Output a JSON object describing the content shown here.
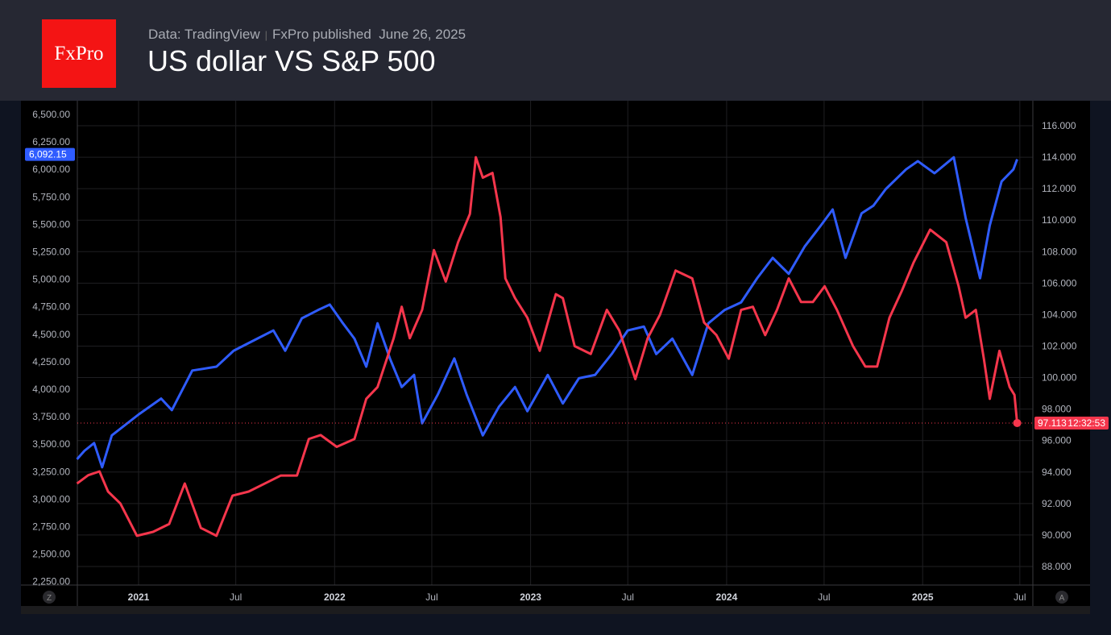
{
  "header": {
    "logo_text": "FxPro",
    "source": "Data: TradingView",
    "publisher": "FxPro published",
    "date": "June 26, 2025",
    "title": "US dollar VS S&P 500"
  },
  "axis_buttons": {
    "left": "Z",
    "right": "A"
  },
  "chart_data": {
    "type": "line",
    "title": "US dollar VS S&P 500",
    "grid": true,
    "colors": {
      "sp500": "#2f5cff",
      "dxy": "#f5364c"
    },
    "x_ticks": [
      {
        "date": "2021-01-01",
        "label": "2021",
        "bold": true
      },
      {
        "date": "2021-07-01",
        "label": "Jul"
      },
      {
        "date": "2022-01-01",
        "label": "2022",
        "bold": true
      },
      {
        "date": "2022-07-01",
        "label": "Jul"
      },
      {
        "date": "2023-01-01",
        "label": "2023",
        "bold": true
      },
      {
        "date": "2023-07-01",
        "label": "Jul"
      },
      {
        "date": "2024-01-01",
        "label": "2024",
        "bold": true
      },
      {
        "date": "2024-07-01",
        "label": "Jul"
      },
      {
        "date": "2025-01-01",
        "label": "2025",
        "bold": true
      },
      {
        "date": "2025-07-01",
        "label": "Jul"
      }
    ],
    "left_axis": {
      "ylim": [
        2250,
        6500
      ],
      "ticks": [
        "6,500.00",
        "6,250.00",
        "6,000.00",
        "5,750.00",
        "5,500.00",
        "5,250.00",
        "5,000.00",
        "4,750.00",
        "4,500.00",
        "4,250.00",
        "4,000.00",
        "3,750.00",
        "3,500.00",
        "3,250.00",
        "3,000.00",
        "2,750.00",
        "2,500.00",
        "2,250.00"
      ],
      "last_value_label": "6,092.15"
    },
    "right_axis": {
      "ylim": [
        88,
        116
      ],
      "ticks": [
        "116.000",
        "114.000",
        "112.000",
        "110.000",
        "108.000",
        "106.000",
        "104.000",
        "102.000",
        "100.000",
        "98.000",
        "96.000",
        "94.000",
        "92.000",
        "90.000",
        "88.000"
      ],
      "last_value_label": "97.113",
      "countdown": "12:32:53"
    },
    "series": [
      {
        "axis": "left",
        "points": [
          [
            "2020-09-08",
            3363
          ],
          [
            "2020-09-22",
            3440
          ],
          [
            "2020-10-10",
            3510
          ],
          [
            "2020-10-25",
            3290
          ],
          [
            "2020-11-12",
            3580
          ],
          [
            "2021-01-01",
            3770
          ],
          [
            "2021-02-12",
            3915
          ],
          [
            "2021-03-04",
            3810
          ],
          [
            "2021-04-11",
            4170
          ],
          [
            "2021-05-26",
            4205
          ],
          [
            "2021-06-27",
            4350
          ],
          [
            "2021-08-10",
            4460
          ],
          [
            "2021-09-09",
            4535
          ],
          [
            "2021-10-01",
            4350
          ],
          [
            "2021-11-01",
            4645
          ],
          [
            "2021-12-01",
            4720
          ],
          [
            "2021-12-23",
            4770
          ],
          [
            "2022-01-15",
            4610
          ],
          [
            "2022-02-07",
            4460
          ],
          [
            "2022-03-01",
            4205
          ],
          [
            "2022-03-22",
            4600
          ],
          [
            "2022-04-14",
            4280
          ],
          [
            "2022-05-06",
            4020
          ],
          [
            "2022-05-29",
            4130
          ],
          [
            "2022-06-13",
            3690
          ],
          [
            "2022-07-12",
            3950
          ],
          [
            "2022-08-12",
            4280
          ],
          [
            "2022-09-04",
            3950
          ],
          [
            "2022-10-04",
            3580
          ],
          [
            "2022-11-03",
            3840
          ],
          [
            "2022-12-03",
            4020
          ],
          [
            "2022-12-26",
            3800
          ],
          [
            "2023-02-02",
            4130
          ],
          [
            "2023-03-02",
            3870
          ],
          [
            "2023-04-01",
            4100
          ],
          [
            "2023-05-01",
            4130
          ],
          [
            "2023-06-01",
            4320
          ],
          [
            "2023-07-01",
            4535
          ],
          [
            "2023-07-31",
            4570
          ],
          [
            "2023-08-23",
            4320
          ],
          [
            "2023-09-22",
            4460
          ],
          [
            "2023-10-29",
            4130
          ],
          [
            "2023-11-28",
            4600
          ],
          [
            "2023-12-28",
            4720
          ],
          [
            "2024-01-28",
            4790
          ],
          [
            "2024-02-27",
            5010
          ],
          [
            "2024-03-27",
            5195
          ],
          [
            "2024-04-26",
            5050
          ],
          [
            "2024-05-26",
            5300
          ],
          [
            "2024-06-25",
            5490
          ],
          [
            "2024-07-17",
            5635
          ],
          [
            "2024-08-10",
            5195
          ],
          [
            "2024-09-09",
            5600
          ],
          [
            "2024-10-01",
            5670
          ],
          [
            "2024-10-24",
            5820
          ],
          [
            "2024-12-01",
            6000
          ],
          [
            "2024-12-23",
            6075
          ],
          [
            "2025-01-23",
            5965
          ],
          [
            "2025-02-28",
            6110
          ],
          [
            "2025-03-22",
            5560
          ],
          [
            "2025-04-18",
            5010
          ],
          [
            "2025-05-06",
            5490
          ],
          [
            "2025-05-28",
            5890
          ],
          [
            "2025-06-19",
            6000
          ],
          [
            "2025-06-26",
            6092.15
          ]
        ]
      },
      {
        "axis": "right",
        "points": [
          [
            "2020-09-08",
            93.27
          ],
          [
            "2020-09-29",
            93.8
          ],
          [
            "2020-10-20",
            94.04
          ],
          [
            "2020-11-05",
            92.76
          ],
          [
            "2020-11-28",
            92.0
          ],
          [
            "2020-12-29",
            89.95
          ],
          [
            "2021-01-28",
            90.2
          ],
          [
            "2021-02-27",
            90.7
          ],
          [
            "2021-03-28",
            93.27
          ],
          [
            "2021-04-27",
            90.45
          ],
          [
            "2021-05-26",
            89.95
          ],
          [
            "2021-06-25",
            92.5
          ],
          [
            "2021-07-25",
            92.76
          ],
          [
            "2021-08-24",
            93.27
          ],
          [
            "2021-09-23",
            93.78
          ],
          [
            "2021-10-23",
            93.78
          ],
          [
            "2021-11-14",
            96.1
          ],
          [
            "2021-12-06",
            96.35
          ],
          [
            "2022-01-05",
            95.6
          ],
          [
            "2022-02-07",
            96.1
          ],
          [
            "2022-03-01",
            98.65
          ],
          [
            "2022-03-22",
            99.4
          ],
          [
            "2022-04-21",
            102.5
          ],
          [
            "2022-05-06",
            104.5
          ],
          [
            "2022-05-21",
            102.5
          ],
          [
            "2022-06-13",
            104.3
          ],
          [
            "2022-07-05",
            108.1
          ],
          [
            "2022-07-27",
            106.1
          ],
          [
            "2022-08-19",
            108.6
          ],
          [
            "2022-09-10",
            110.4
          ],
          [
            "2022-09-21",
            114.0
          ],
          [
            "2022-10-04",
            112.7
          ],
          [
            "2022-10-22",
            113.0
          ],
          [
            "2022-11-06",
            110.2
          ],
          [
            "2022-11-15",
            106.3
          ],
          [
            "2022-12-03",
            105.05
          ],
          [
            "2022-12-26",
            103.8
          ],
          [
            "2023-01-18",
            101.7
          ],
          [
            "2023-02-17",
            105.3
          ],
          [
            "2023-03-02",
            105.05
          ],
          [
            "2023-03-24",
            102.0
          ],
          [
            "2023-04-23",
            101.5
          ],
          [
            "2023-05-23",
            104.3
          ],
          [
            "2023-06-15",
            103.0
          ],
          [
            "2023-07-15",
            99.9
          ],
          [
            "2023-08-07",
            102.5
          ],
          [
            "2023-08-30",
            104.0
          ],
          [
            "2023-09-28",
            106.8
          ],
          [
            "2023-10-29",
            106.3
          ],
          [
            "2023-11-20",
            103.5
          ],
          [
            "2023-12-13",
            102.7
          ],
          [
            "2024-01-05",
            101.2
          ],
          [
            "2024-01-28",
            104.3
          ],
          [
            "2024-02-19",
            104.5
          ],
          [
            "2024-03-13",
            102.7
          ],
          [
            "2024-04-04",
            104.3
          ],
          [
            "2024-04-26",
            106.3
          ],
          [
            "2024-05-19",
            104.8
          ],
          [
            "2024-06-10",
            104.8
          ],
          [
            "2024-07-02",
            105.8
          ],
          [
            "2024-07-25",
            104.3
          ],
          [
            "2024-08-24",
            102.0
          ],
          [
            "2024-09-16",
            100.7
          ],
          [
            "2024-10-08",
            100.7
          ],
          [
            "2024-10-31",
            103.8
          ],
          [
            "2024-11-23",
            105.5
          ],
          [
            "2024-12-15",
            107.3
          ],
          [
            "2025-01-15",
            109.4
          ],
          [
            "2025-02-14",
            108.6
          ],
          [
            "2025-03-09",
            105.8
          ],
          [
            "2025-03-22",
            103.8
          ],
          [
            "2025-04-10",
            104.3
          ],
          [
            "2025-04-25",
            101.2
          ],
          [
            "2025-05-06",
            98.65
          ],
          [
            "2025-05-24",
            101.7
          ],
          [
            "2025-06-12",
            99.4
          ],
          [
            "2025-06-21",
            98.9
          ],
          [
            "2025-06-26",
            97.113
          ]
        ]
      }
    ]
  }
}
